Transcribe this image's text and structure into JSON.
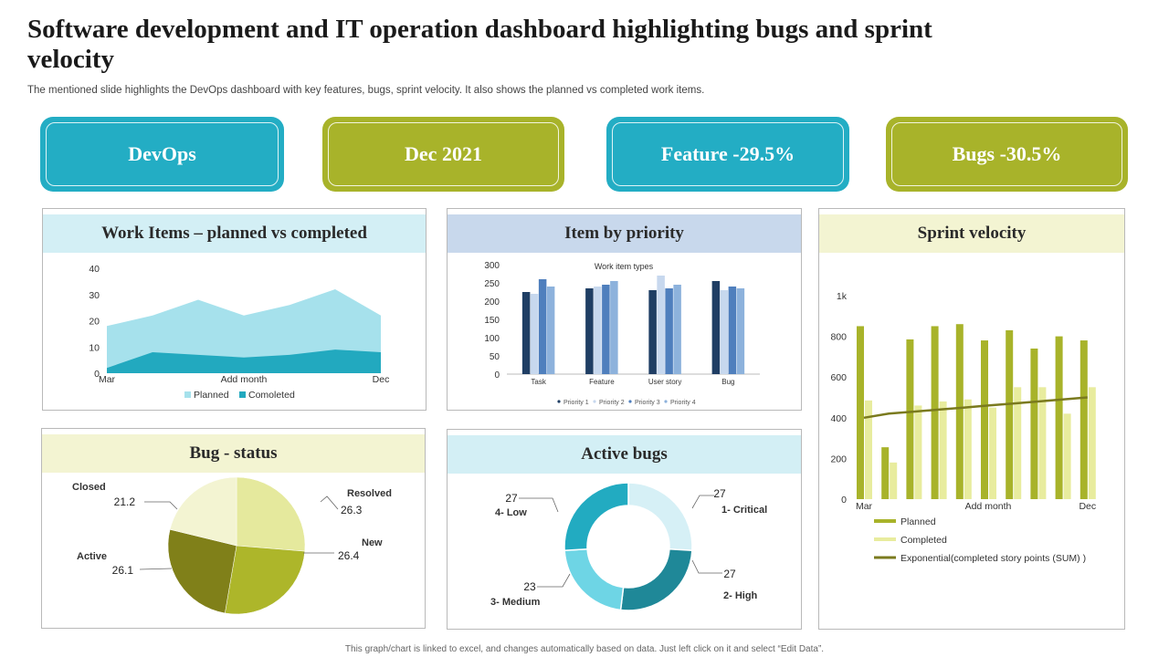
{
  "header": {
    "title": "Software development and IT operation dashboard highlighting bugs and sprint velocity",
    "subtitle": "The mentioned slide highlights the DevOps dashboard with key features, bugs, sprint velocity. It also shows the planned vs completed work items."
  },
  "kpis": [
    {
      "label": "DevOps",
      "color": "#23adc4"
    },
    {
      "label": "Dec 2021",
      "color": "#a8b32a"
    },
    {
      "label": "Feature -29.5%",
      "color": "#23adc4"
    },
    {
      "label": "Bugs -30.5%",
      "color": "#a8b32a"
    }
  ],
  "panels": {
    "work_items": {
      "title": "Work Items – planned vs completed",
      "header_color": "#d3eff5"
    },
    "priority": {
      "title": "Item by priority",
      "header_color": "#c8d8ec"
    },
    "velocity": {
      "title": "Sprint velocity",
      "header_color": "#f3f4d2"
    },
    "bug_status": {
      "title": "Bug - status",
      "header_color": "#f3f4d2"
    },
    "active_bugs": {
      "title": "Active bugs",
      "header_color": "#d3eff5"
    }
  },
  "footer": "This graph/chart is linked to excel, and changes automatically based on data. Just left click on it and select “Edit Data”.",
  "chart_data": [
    {
      "id": "work_items",
      "type": "area",
      "x_count": 7,
      "x_tick_labels": [
        {
          "index": 0,
          "label": "Mar"
        },
        {
          "index": 3,
          "label": "Add month"
        },
        {
          "index": 6,
          "label": "Dec"
        }
      ],
      "yticks": [
        0,
        10,
        20,
        30,
        40
      ],
      "ylim": [
        0,
        40
      ],
      "series": [
        {
          "name": "Planned",
          "color": "#a6e1ec",
          "values": [
            18,
            22,
            28,
            22,
            26,
            32,
            22
          ]
        },
        {
          "name": "Comoleted",
          "color": "#22a9bf",
          "values": [
            2,
            8,
            7,
            6,
            7,
            9,
            8
          ]
        }
      ]
    },
    {
      "id": "priority",
      "type": "bar",
      "title": "Work item types",
      "categories": [
        "Task",
        "Feature",
        "User story",
        "Bug"
      ],
      "yticks": [
        0,
        50,
        100,
        150,
        200,
        250,
        300
      ],
      "ylim": [
        0,
        300
      ],
      "series": [
        {
          "name": "Priority 1",
          "color": "#1f3e64",
          "values": [
            225,
            235,
            230,
            255
          ]
        },
        {
          "name": "Priority 2",
          "color": "#c7d8ee",
          "values": [
            220,
            240,
            270,
            230
          ]
        },
        {
          "name": "Priority 3",
          "color": "#4f7fbd",
          "values": [
            260,
            245,
            235,
            240
          ]
        },
        {
          "name": "Priority 4",
          "color": "#8db2dc",
          "values": [
            240,
            255,
            245,
            235
          ]
        }
      ]
    },
    {
      "id": "velocity",
      "type": "bar",
      "x_count": 10,
      "x_tick_labels": [
        {
          "index": 0,
          "label": "Mar"
        },
        {
          "index": 5,
          "label": "Add month"
        },
        {
          "index": 9,
          "label": "Dec"
        }
      ],
      "yticks": [
        {
          "value": 0,
          "label": "0"
        },
        {
          "value": 200,
          "label": "200"
        },
        {
          "value": 400,
          "label": "400"
        },
        {
          "value": 600,
          "label": "600"
        },
        {
          "value": 800,
          "label": "800"
        },
        {
          "value": 1000,
          "label": "1k"
        }
      ],
      "ylim": [
        0,
        1000
      ],
      "series": [
        {
          "name": "Planned",
          "color": "#a8b32a",
          "values": [
            850,
            255,
            785,
            850,
            860,
            780,
            830,
            740,
            800,
            780
          ]
        },
        {
          "name": "Completed",
          "color": "#e8ec9e",
          "values": [
            485,
            180,
            460,
            480,
            490,
            450,
            550,
            550,
            420,
            550
          ]
        },
        {
          "name": "Exponential(completed story points (SUM) )",
          "type": "line",
          "color": "#7a7a1e",
          "values": [
            400,
            420,
            430,
            440,
            450,
            460,
            470,
            480,
            490,
            500
          ]
        }
      ]
    },
    {
      "id": "bug_status",
      "type": "pie",
      "slices": [
        {
          "label": "Resolved",
          "value": 26.3,
          "color": "#e5e99d"
        },
        {
          "label": "New",
          "value": 26.4,
          "color": "#adb62a"
        },
        {
          "label": "Active",
          "value": 26.1,
          "color": "#808019"
        },
        {
          "label": "Closed",
          "value": 21.2,
          "color": "#f3f4d2"
        }
      ]
    },
    {
      "id": "active_bugs",
      "type": "pie",
      "donut": true,
      "slices": [
        {
          "label": "1- Critical",
          "value": 27,
          "color": "#d6f0f6"
        },
        {
          "label": "2- High",
          "value": 27,
          "color": "#1f8898"
        },
        {
          "label": "3- Medium",
          "value": 23,
          "color": "#6ed5e5"
        },
        {
          "label": "4- Low",
          "value": 27,
          "color": "#22abc1"
        }
      ]
    }
  ]
}
